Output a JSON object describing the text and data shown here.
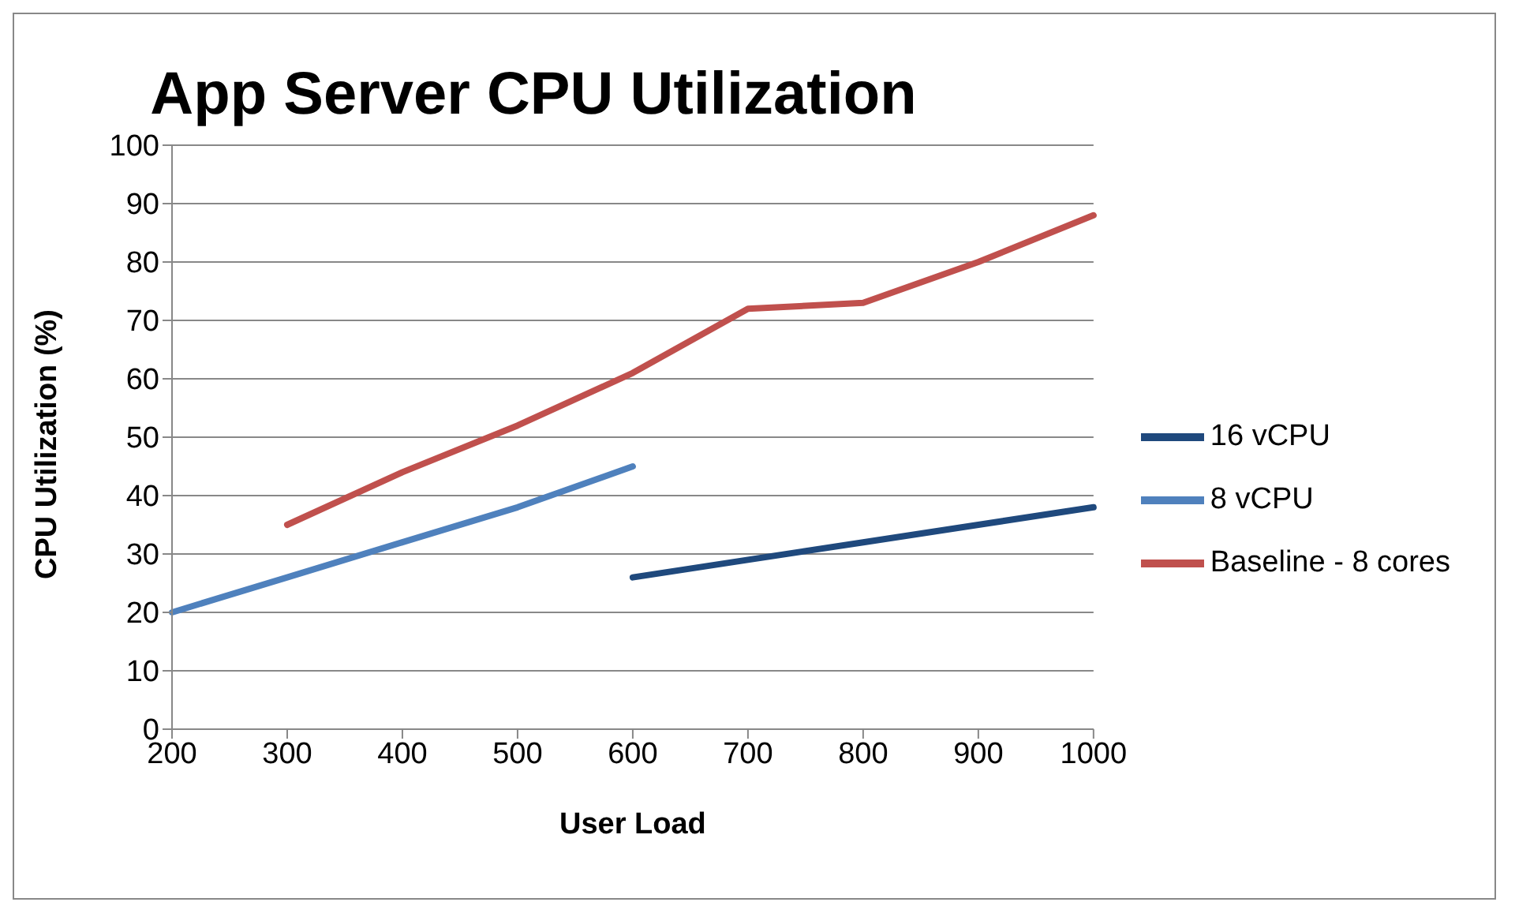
{
  "chart_data": {
    "type": "line",
    "title": "App Server CPU Utilization",
    "xlabel": "User Load",
    "ylabel": "CPU Utilization (%)",
    "categories": [
      "200",
      "300",
      "400",
      "500",
      "600",
      "700",
      "800",
      "900",
      "1000"
    ],
    "series": [
      {
        "name": "Baseline - 8 cores",
        "color": "#c0504d",
        "values": [
          null,
          35,
          44,
          52,
          61,
          72,
          73,
          80,
          88
        ]
      },
      {
        "name": "8 vCPU",
        "color": "#4f81bd",
        "values": [
          20,
          26,
          32,
          38,
          45,
          null,
          null,
          null,
          null
        ]
      },
      {
        "name": "16 vCPU",
        "color": "#1f497d",
        "values": [
          null,
          null,
          null,
          null,
          26,
          29,
          32,
          35,
          38
        ]
      }
    ],
    "ylim": [
      0,
      100
    ],
    "yticks": [
      0,
      10,
      20,
      30,
      40,
      50,
      60,
      70,
      80,
      90,
      100
    ],
    "grid": "y",
    "legend": "right",
    "marker": "none",
    "line_style": "solid"
  }
}
